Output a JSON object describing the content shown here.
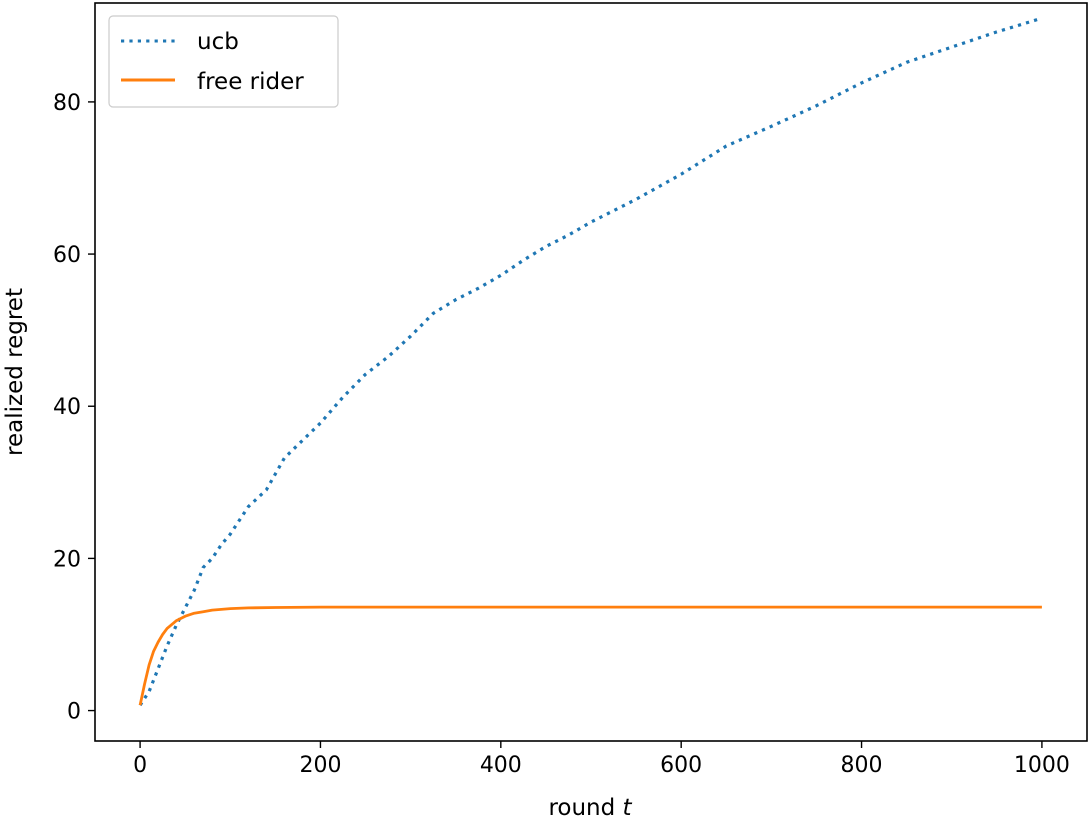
{
  "chart_data": {
    "type": "line",
    "xlabel": "round",
    "xlabel_var": "t",
    "ylabel": "realized regret",
    "xlim": [
      -50,
      1050
    ],
    "ylim": [
      -4,
      93
    ],
    "xticks": [
      0,
      200,
      400,
      600,
      800,
      1000
    ],
    "yticks": [
      0,
      20,
      40,
      60,
      80
    ],
    "grid": false,
    "legend_position": "top-left",
    "series": [
      {
        "name": "ucb",
        "color": "#1f77b4",
        "style": "dotted",
        "x": [
          0,
          10,
          20,
          30,
          40,
          50,
          60,
          70,
          80,
          90,
          100,
          120,
          140,
          160,
          180,
          200,
          225,
          250,
          275,
          300,
          325,
          350,
          375,
          400,
          425,
          450,
          475,
          500,
          550,
          600,
          650,
          700,
          750,
          800,
          850,
          900,
          950,
          1000
        ],
        "y": [
          0.7,
          2.5,
          5.5,
          8.5,
          11.2,
          13.5,
          15.8,
          18.8,
          20.0,
          21.8,
          23.2,
          26.8,
          29.0,
          33.2,
          35.5,
          37.8,
          41.2,
          44.2,
          46.5,
          49.2,
          52.2,
          54.0,
          55.5,
          57.2,
          59.2,
          61.0,
          62.5,
          64.2,
          67.2,
          70.5,
          74.2,
          76.8,
          79.5,
          82.5,
          85.2,
          87.2,
          89.2,
          91.0
        ]
      },
      {
        "name": "free rider",
        "color": "#ff7f0e",
        "style": "solid",
        "x": [
          0,
          5,
          10,
          15,
          20,
          25,
          30,
          40,
          50,
          60,
          70,
          80,
          100,
          120,
          150,
          200,
          300,
          500,
          1000
        ],
        "y": [
          0.7,
          3.5,
          6.0,
          7.8,
          9.0,
          10.0,
          10.8,
          11.8,
          12.4,
          12.8,
          13.0,
          13.2,
          13.4,
          13.5,
          13.55,
          13.6,
          13.6,
          13.6,
          13.6
        ]
      }
    ]
  }
}
